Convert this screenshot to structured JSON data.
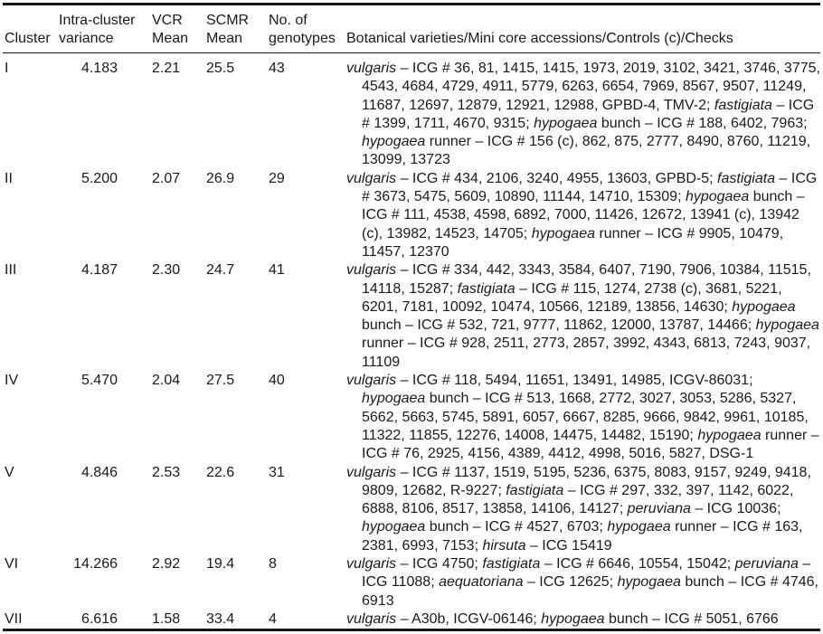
{
  "colors": {
    "background": "#ffffff",
    "text": "#1a1a1a",
    "rule": "#141414"
  },
  "table": {
    "headers": [
      "Cluster",
      "Intra-cluster\nvariance",
      "VCR\nMean",
      "SCMR\nMean",
      "No. of\ngenotypes",
      "Botanical varieties/Mini core accessions/Controls (c)/Checks"
    ],
    "rows": [
      {
        "cluster": "I",
        "intra_cluster_variance": "4.183",
        "vcr_mean": "2.21",
        "scmr_mean": "25.5",
        "no_of_genotypes": "43",
        "botanical": "*vulgaris* – ICG # 36, 81, 1415, 1415, 1973, 2019, 3102, 3421, 3746, 3775, 4543, 4684, 4729, 4911, 5779, 6263, 6654, 7969, 8567, 9507, 11249, 11687, 12697, 12879, 12921, 12988, GPBD-4, TMV-2; *fastigiata* – ICG # 1399, 1711, 4670, 9315; *hypogaea* bunch – ICG # 188, 6402, 7963; *hypogaea* runner – ICG # 156 (c), 862, 875, 2777, 8490, 8760, 11219, 13099, 13723"
      },
      {
        "cluster": "II",
        "intra_cluster_variance": "5.200",
        "vcr_mean": "2.07",
        "scmr_mean": "26.9",
        "no_of_genotypes": "29",
        "botanical": "*vulgaris* – ICG # 434, 2106, 3240, 4955, 13603, GPBD-5; *fastigiata* – ICG # 3673, 5475, 5609, 10890, 11144, 14710, 15309; *hypogaea* bunch – ICG # 111, 4538, 4598, 6892, 7000, 11426, 12672, 13941 (c), 13942 (c), 13982, 14523, 14705; *hypogaea* runner – ICG # 9905, 10479, 11457, 12370"
      },
      {
        "cluster": "III",
        "intra_cluster_variance": "4.187",
        "vcr_mean": "2.30",
        "scmr_mean": "24.7",
        "no_of_genotypes": "41",
        "botanical": "*vulgaris* – ICG # 334, 442, 3343, 3584, 6407, 7190, 7906, 10384, 11515, 14118, 15287; *fastigiata* – ICG # 115, 1274, 2738 (c), 3681, 5221, 6201, 7181, 10092, 10474, 10566, 12189, 13856, 14630; *hypogaea* bunch – ICG # 532, 721, 9777, 11862, 12000, 13787, 14466; *hypogaea* runner – ICG # 928, 2511, 2773, 2857, 3992, 4343, 6813, 7243, 9037, 11109"
      },
      {
        "cluster": "IV",
        "intra_cluster_variance": "5.470",
        "vcr_mean": "2.04",
        "scmr_mean": "27.5",
        "no_of_genotypes": "40",
        "botanical": "*vulgaris* – ICG # 118, 5494, 11651, 13491, 14985, ICGV-86031; *hypogaea* bunch – ICG # 513, 1668, 2772, 3027, 3053, 5286, 5327, 5662, 5663, 5745, 5891, 6057, 6667, 8285, 9666, 9842, 9961, 10185, 11322, 11855, 12276, 14008, 14475, 14482, 15190; *hypogaea* runner – ICG # 76, 2925, 4156, 4389, 4412, 4998, 5016, 5827, DSG-1"
      },
      {
        "cluster": "V",
        "intra_cluster_variance": "4.846",
        "vcr_mean": "2.53",
        "scmr_mean": "22.6",
        "no_of_genotypes": "31",
        "botanical": "*vulgaris* – ICG # 1137, 1519, 5195, 5236, 6375, 8083, 9157, 9249, 9418, 9809, 12682, R-9227; *fastigiata* – ICG # 297, 332, 397, 1142, 6022, 6888, 8106, 8517, 13858, 14106, 14127; *peruviana* – ICG 10036; *hypogaea* bunch – ICG # 4527, 6703; *hypogaea* runner – ICG # 163, 2381, 6993, 7153; *hirsuta* – ICG 15419"
      },
      {
        "cluster": "VI",
        "intra_cluster_variance": "14.266",
        "vcr_mean": "2.92",
        "scmr_mean": "19.4",
        "no_of_genotypes": "8",
        "botanical": "*vulgaris* – ICG 4750; *fastigiata* – ICG # 6646, 10554, 15042; *peruviana* – ICG 11088; *aequatoriana* – ICG 12625; *hypogaea* bunch – ICG # 4746, 6913"
      },
      {
        "cluster": "VII",
        "intra_cluster_variance": "6.616",
        "vcr_mean": "1.58",
        "scmr_mean": "33.4",
        "no_of_genotypes": "4",
        "botanical": "*vulgaris* – A30b, ICGV-06146; *hypogaea* bunch – ICG # 5051, 6766"
      }
    ]
  }
}
